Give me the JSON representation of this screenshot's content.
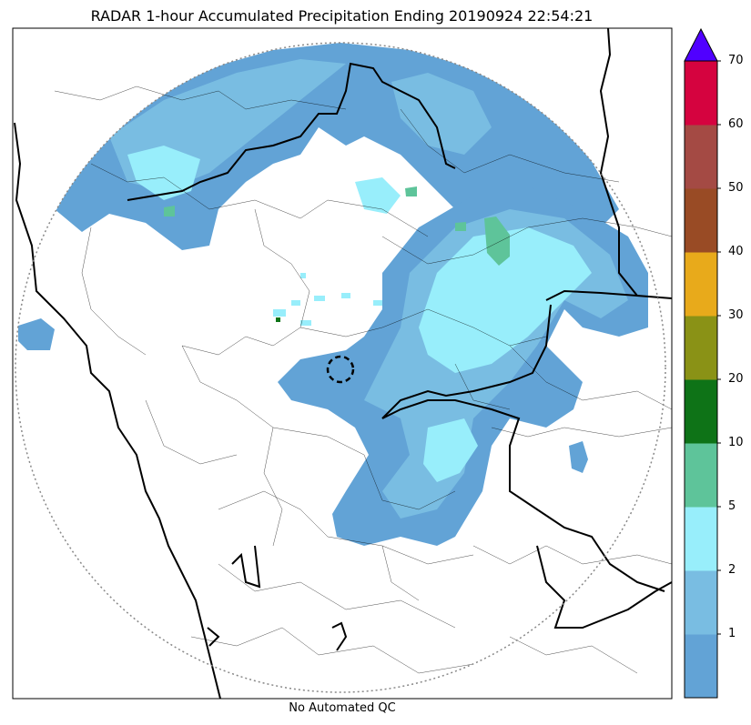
{
  "title": "RADAR 1-hour Accumulated Precipitation Ending 20190924 22:54:21",
  "caption": "No Automated QC",
  "colorbar": {
    "colors": [
      "#62a3d6",
      "#79bde2",
      "#98eefb",
      "#5ec49a",
      "#0e7317",
      "#8a9216",
      "#e8aa1b",
      "#994b25",
      "#a44a44",
      "#d5033f"
    ],
    "extend_color": "#5000ff",
    "labels": [
      "1",
      "2",
      "5",
      "10",
      "20",
      "30",
      "40",
      "50",
      "60",
      "70"
    ]
  },
  "map": {
    "precip_colors": {
      "light": "#62a3d6",
      "moderate": "#79bde2",
      "heavy": "#98eefb",
      "intense": "#5ec49a",
      "extreme": "#0e7317"
    },
    "boundary_color": "#000000",
    "range_ring_color": "#888888"
  }
}
